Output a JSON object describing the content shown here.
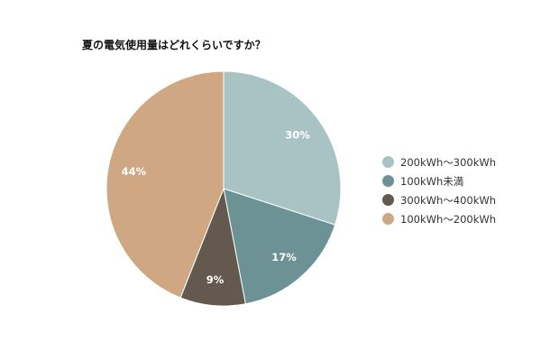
{
  "chart_data": {
    "type": "pie",
    "title": "夏の電気使用量はどれくらいですか？",
    "slices": [
      {
        "name": "200kWh～300kWh",
        "value": 30,
        "label": "30%",
        "color": "#a9c3c4"
      },
      {
        "name": "100kWh未満",
        "value": 17,
        "label": "17%",
        "color": "#6c9296"
      },
      {
        "name": "300kWh～400kWh",
        "value": 9,
        "label": "9%",
        "color": "#64594f"
      },
      {
        "name": "100kWh～200kWh",
        "value": 44,
        "label": "44%",
        "color": "#cfa782"
      }
    ],
    "legend_position": "right"
  }
}
